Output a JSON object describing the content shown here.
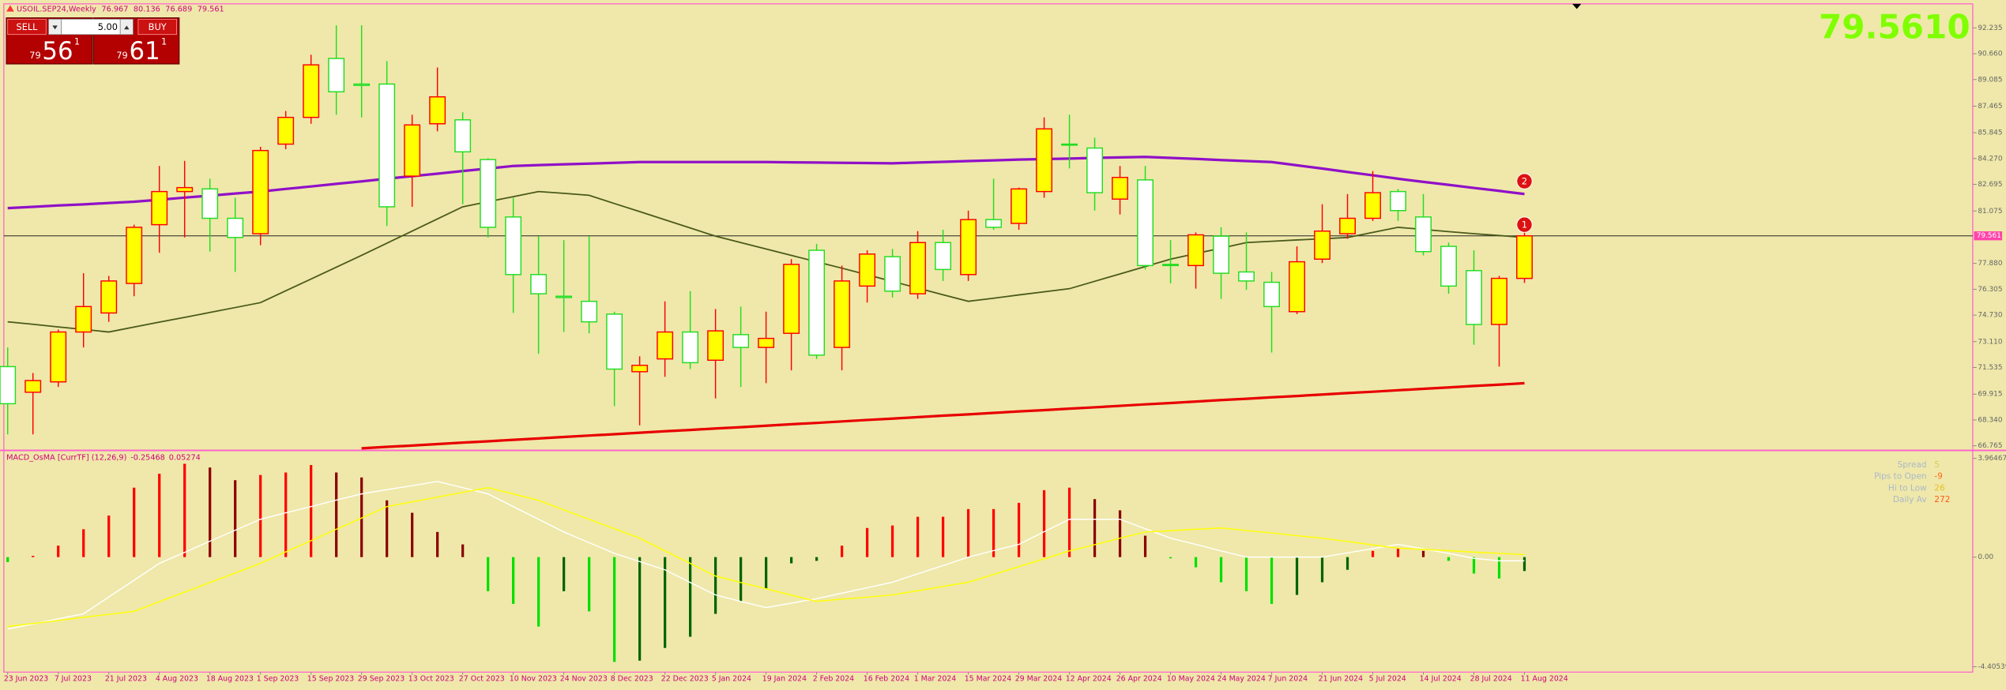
{
  "header": {
    "symbol": "USOIL.SEP24,Weekly"
  },
  "trade_panel": {
    "sell": "SELL",
    "buy": "BUY",
    "lot": "5.00",
    "sell_price": {
      "big": "79",
      "main": "56",
      "frac": "1"
    },
    "buy_price": {
      "big": "79",
      "main": "61",
      "frac": "1"
    }
  },
  "big_price": "79.5610",
  "info_panel": [
    {
      "label": "Spread",
      "value": "5"
    },
    {
      "label": "Pips to Open",
      "value": "-9"
    },
    {
      "label": "Hi to Low",
      "value": "26"
    },
    {
      "label": "Daily Av",
      "value": "272"
    }
  ],
  "chart_data": [
    {
      "type": "candlestick",
      "categories": [
        "23 Jun 2023",
        null,
        "7 Jul 2023",
        null,
        "21 Jul 2023",
        null,
        "4 Aug 2023",
        null,
        "18 Aug 2023",
        null,
        "1 Sep 2023",
        null,
        "15 Sep 2023",
        null,
        "29 Sep 2023",
        null,
        "13 Oct 2023",
        null,
        "27 Oct 2023",
        null,
        "10 Nov 2023",
        null,
        "24 Nov 2023",
        null,
        "8 Dec 2023",
        null,
        "22 Dec 2023",
        null,
        "5 Jan 2024",
        null,
        "19 Jan 2024",
        null,
        "2 Feb 2024",
        null,
        "16 Feb 2024",
        null,
        "1 Mar 2024",
        null,
        "15 Mar 2024",
        null,
        "29 Mar 2024",
        null,
        "12 Apr 2024",
        null,
        "26 Apr 2024",
        null,
        "10 May 2024",
        null,
        "24 May 2024",
        null,
        "7 Jun 2024",
        null,
        "21 Jun 2024",
        null,
        "5 Jul 2024",
        null,
        "14 Jul 2024",
        null,
        "28 Jul 2024",
        null,
        "11 Aug 2024"
      ],
      "open": [
        71.59,
        70.03,
        70.66,
        73.7,
        74.86,
        76.66,
        80.24,
        82.26,
        82.42,
        80.63,
        79.69,
        85.15,
        86.78,
        90.37,
        88.81,
        88.81,
        83.2,
        86.39,
        86.63,
        84.21,
        80.71,
        77.2,
        75.88,
        75.57,
        74.79,
        71.28,
        72.06,
        73.7,
        71.98,
        73.54,
        72.76,
        73.62,
        78.68,
        72.76,
        76.5,
        78.29,
        76.03,
        79.15,
        77.2,
        80.55,
        80.32,
        82.26,
        85.15,
        84.91,
        81.8,
        82.97,
        77.82,
        77.75,
        79.54,
        77.36,
        76.73,
        74.94,
        78.14,
        79.69,
        80.63,
        82.26,
        80.71,
        78.92,
        77.44,
        74.16,
        76.967
      ],
      "high": [
        72.76,
        71.2,
        73.85,
        77.28,
        77.12,
        80.24,
        83.82,
        84.13,
        83.04,
        81.88,
        84.99,
        87.17,
        90.6,
        92.39,
        92.39,
        90.21,
        86.94,
        89.82,
        87.09,
        84.29,
        81.88,
        79.54,
        79.3,
        79.54,
        74.94,
        72.22,
        75.57,
        76.19,
        75.1,
        75.25,
        74.94,
        78.14,
        79.07,
        77.75,
        78.68,
        78.76,
        79.85,
        79.93,
        81.1,
        83.04,
        82.5,
        86.78,
        86.94,
        85.54,
        83.82,
        83.82,
        79.3,
        79.77,
        80.08,
        79.77,
        77.36,
        78.92,
        81.49,
        82.11,
        83.51,
        82.42,
        82.11,
        79.15,
        78.68,
        77.12,
        80.136
      ],
      "low": [
        67.46,
        67.46,
        70.35,
        72.76,
        74.32,
        75.88,
        78.53,
        79.46,
        78.6,
        77.36,
        78.99,
        84.84,
        86.39,
        86.94,
        86.78,
        80.16,
        81.33,
        85.93,
        81.49,
        79.46,
        74.86,
        72.37,
        73.7,
        73.62,
        69.18,
        68.01,
        70.97,
        71.44,
        69.65,
        70.35,
        70.58,
        71.36,
        72.06,
        71.36,
        75.49,
        75.8,
        75.72,
        76.81,
        76.81,
        79.93,
        79.93,
        81.88,
        83.67,
        81.1,
        80.86,
        77.51,
        76.66,
        76.34,
        75.72,
        76.27,
        72.45,
        74.79,
        77.9,
        79.38,
        80.47,
        80.47,
        78.37,
        76.03,
        72.92,
        71.59,
        76.689
      ],
      "close": [
        69.33,
        70.74,
        73.7,
        75.25,
        76.81,
        80.08,
        82.26,
        82.5,
        80.63,
        79.46,
        84.76,
        86.78,
        89.98,
        88.34,
        88.73,
        81.33,
        86.32,
        88.03,
        84.68,
        80.08,
        77.2,
        76.03,
        75.8,
        74.32,
        71.44,
        71.67,
        73.7,
        71.83,
        73.77,
        72.76,
        73.31,
        77.82,
        72.29,
        76.81,
        78.45,
        76.19,
        79.15,
        77.51,
        80.55,
        80.08,
        82.42,
        86.08,
        85.1,
        82.19,
        83.12,
        77.75,
        77.75,
        79.62,
        77.28,
        76.81,
        75.25,
        77.98,
        79.85,
        80.63,
        82.19,
        81.1,
        78.6,
        76.5,
        74.16,
        76.97,
        79.561
      ],
      "up_color": "#ffff00",
      "up_edge": "#ff0000",
      "down_color": "#ffffff",
      "down_edge": "#22dd22",
      "series": [
        {
          "color": "#9010c8",
          "values": [
            81.25,
            81.33,
            81.41,
            81.48,
            81.56,
            81.64,
            81.76,
            81.89,
            82.01,
            82.14,
            82.26,
            82.42,
            82.57,
            82.73,
            82.88,
            83.04,
            83.2,
            83.35,
            83.51,
            83.66,
            83.82,
            83.87,
            83.92,
            83.96,
            84.01,
            84.06,
            84.06,
            84.06,
            84.06,
            84.06,
            84.06,
            84.04,
            84.03,
            84.01,
            84.0,
            83.98,
            84.03,
            84.07,
            84.12,
            84.16,
            84.21,
            84.24,
            84.27,
            84.31,
            84.34,
            84.37,
            84.31,
            84.25,
            84.18,
            84.12,
            84.06,
            83.86,
            83.66,
            83.45,
            83.25,
            83.04,
            82.85,
            82.67,
            82.48,
            82.3,
            82.11
          ]
        },
        {
          "color": "#4a5a1a",
          "values": [
            74.32,
            74.17,
            74.01,
            73.86,
            73.7,
            74.0,
            74.3,
            74.59,
            74.89,
            75.19,
            75.49,
            76.21,
            76.93,
            77.65,
            78.37,
            79.11,
            79.85,
            80.59,
            81.33,
            81.64,
            81.95,
            82.26,
            82.15,
            82.03,
            81.53,
            81.04,
            80.54,
            80.04,
            79.54,
            79.15,
            78.76,
            78.37,
            77.98,
            77.59,
            77.19,
            76.78,
            76.38,
            75.97,
            75.57,
            75.76,
            75.96,
            76.15,
            76.34,
            76.79,
            77.24,
            77.69,
            78.14,
            78.48,
            78.81,
            79.15,
            79.23,
            79.31,
            79.38,
            79.46,
            79.77,
            80.08,
            79.95,
            79.82,
            79.69,
            79.58,
            79.46
          ]
        },
        {
          "color": "#e80000",
          "values": [
            null,
            null,
            null,
            null,
            null,
            null,
            null,
            null,
            null,
            null,
            null,
            null,
            null,
            null,
            66.61,
            66.7,
            66.78,
            66.87,
            66.96,
            67.04,
            67.13,
            67.21,
            67.3,
            67.39,
            67.47,
            67.56,
            67.65,
            67.73,
            67.82,
            67.9,
            67.99,
            68.08,
            68.16,
            68.25,
            68.34,
            68.42,
            68.51,
            68.6,
            68.68,
            68.77,
            68.86,
            68.94,
            69.03,
            69.11,
            69.2,
            69.29,
            69.37,
            69.46,
            69.55,
            69.63,
            69.72,
            69.8,
            69.89,
            69.98,
            70.06,
            70.15,
            70.24,
            70.32,
            70.41,
            70.49,
            70.58
          ]
        }
      ],
      "annotations": [
        "1",
        "2"
      ],
      "ylim": [
        66.6,
        93.7
      ],
      "yticks": [
        92.235,
        {
          "value": 90.66,
          "label": "90.660"
        },
        89.085,
        87.465,
        85.845,
        {
          "value": 84.27,
          "label": "84.270"
        },
        82.695,
        81.075,
        {
          "value": 77.88,
          "label": "77.880"
        },
        76.305,
        {
          "value": 74.73,
          "label": "74.730"
        },
        {
          "value": 73.11,
          "label": "73.110"
        },
        71.535,
        69.915,
        {
          "value": 68.34,
          "label": "68.340"
        },
        66.765
      ],
      "price_line": true
    },
    {
      "type": "oscillator",
      "title": "MACD_OsMA [CurrTF] (12,26,9)",
      "current_values": [
        -0.25468,
        0.05274
      ],
      "histogram": [
        -0.2,
        0.05,
        0.46,
        1.12,
        1.67,
        2.79,
        3.35,
        3.75,
        3.6,
        3.09,
        3.3,
        3.4,
        3.7,
        3.4,
        3.2,
        2.28,
        1.78,
        1.01,
        0.51,
        -1.37,
        -1.88,
        -2.79,
        -1.37,
        -2.18,
        -4.21,
        -4.16,
        -3.65,
        -3.2,
        -2.28,
        -1.78,
        -1.27,
        -0.25,
        -0.15,
        0.46,
        1.17,
        1.27,
        1.62,
        1.62,
        1.93,
        1.93,
        2.18,
        2.69,
        2.79,
        2.33,
        1.88,
        0.86,
        -0.05,
        -0.41,
        -1.01,
        -1.37,
        -1.88,
        -1.52,
        -1.01,
        -0.51,
        0.25,
        0.36,
        0.25,
        -0.15,
        -0.66,
        -0.86,
        -0.56
      ],
      "bar_colors": [
        "#ff0000",
        "#8b0000",
        "#00e000",
        "#006400"
      ],
      "series": [
        {
          "color": "#ffffff",
          "values": [
            -2.89,
            -2.69,
            -2.48,
            -2.28,
            -1.6,
            -0.93,
            -0.25,
            0.19,
            0.64,
            1.08,
            1.52,
            1.78,
            2.03,
            2.29,
            2.54,
            2.71,
            2.87,
            3.04,
            2.79,
            2.54,
            2.03,
            1.52,
            1.01,
            0.58,
            0.15,
            -0.18,
            -0.51,
            -1.02,
            -1.52,
            -1.78,
            -2.03,
            -1.85,
            -1.67,
            -1.45,
            -1.23,
            -1.01,
            -0.67,
            -0.34,
            0,
            0.26,
            0.51,
            1.02,
            1.52,
            1.52,
            1.52,
            1.14,
            0.76,
            0.51,
            0.25,
            0,
            0,
            0,
            0,
            0.17,
            0.34,
            0.51,
            0.33,
            0.15,
            -0.05,
            -0.15,
            -0.15
          ]
        },
        {
          "color": "#ffff00",
          "values": [
            -2.79,
            -2.67,
            -2.55,
            -2.42,
            -2.3,
            -2.18,
            -1.79,
            -1.41,
            -1.02,
            -0.64,
            -0.25,
            0.21,
            0.66,
            1.12,
            1.57,
            2.03,
            2.22,
            2.41,
            2.6,
            2.79,
            2.54,
            2.28,
            1.9,
            1.52,
            1.14,
            0.76,
            0.25,
            -0.25,
            -0.76,
            -1.02,
            -1.27,
            -1.53,
            -1.78,
            -1.69,
            -1.61,
            -1.52,
            -1.35,
            -1.18,
            -1.01,
            -0.7,
            -0.38,
            -0.07,
            0.25,
            0.5,
            0.76,
            1.01,
            1.06,
            1.12,
            1.17,
            1.07,
            0.97,
            0.86,
            0.76,
            0.63,
            0.49,
            0.36,
            0.31,
            0.26,
            0.2,
            0.15,
            0.1
          ]
        }
      ],
      "ylim": [
        -4.57,
        4.21
      ],
      "yticks": [
        3.96467,
        {
          "value": 0,
          "label": "0.00"
        },
        -4.40539
      ]
    }
  ]
}
